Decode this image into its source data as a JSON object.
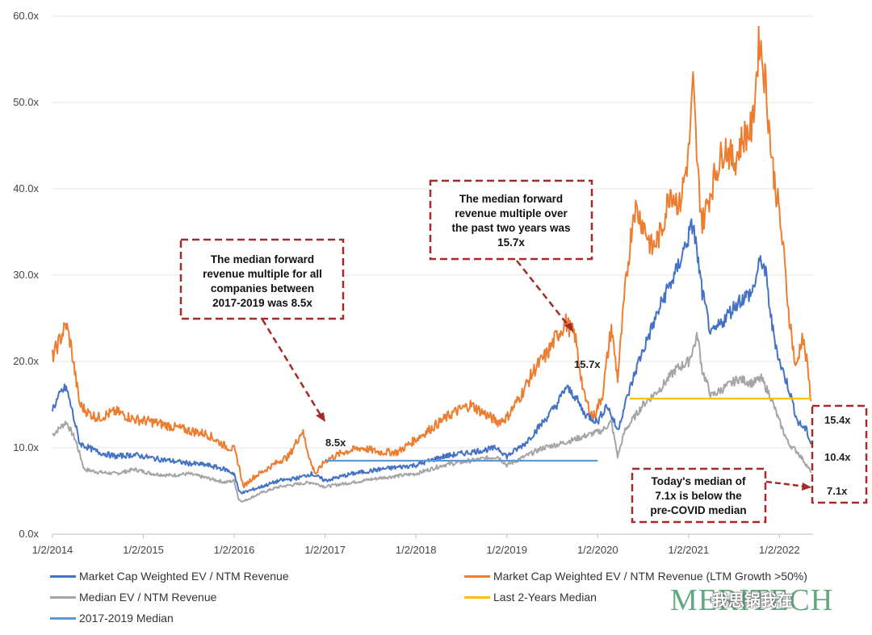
{
  "chart_data": {
    "type": "line",
    "title": "",
    "xlabel": "",
    "ylabel": "",
    "ylim": [
      0,
      60
    ],
    "y_ticks": [
      0,
      10,
      20,
      30,
      40,
      50,
      60
    ],
    "y_tick_labels": [
      "0.0x",
      "10.0x",
      "20.0x",
      "30.0x",
      "40.0x",
      "50.0x",
      "60.0x"
    ],
    "x_range": [
      2014.0,
      2022.37
    ],
    "x_ticks": [
      2014,
      2015,
      2016,
      2017,
      2018,
      2019,
      2020,
      2021,
      2022
    ],
    "x_tick_labels": [
      "1/2/2014",
      "1/2/2015",
      "1/2/2016",
      "1/2/2017",
      "1/2/2018",
      "1/2/2019",
      "1/2/2020",
      "1/2/2021",
      "1/2/2022"
    ],
    "series": [
      {
        "name": "Market Cap Weighted EV / NTM Revenue (LTM Growth >50%)",
        "color": "#ED7D31",
        "x": [
          2014.0,
          2014.1,
          2014.15,
          2014.2,
          2014.3,
          2014.4,
          2014.5,
          2014.7,
          2014.9,
          2015.1,
          2015.3,
          2015.5,
          2015.7,
          2015.9,
          2016.0,
          2016.05,
          2016.1,
          2016.2,
          2016.35,
          2016.5,
          2016.6,
          2016.75,
          2016.85,
          2016.9,
          2017.0,
          2017.2,
          2017.4,
          2017.6,
          2017.8,
          2018.0,
          2018.2,
          2018.4,
          2018.6,
          2018.75,
          2018.9,
          2019.0,
          2019.15,
          2019.3,
          2019.45,
          2019.55,
          2019.65,
          2019.75,
          2019.85,
          2019.95,
          2020.05,
          2020.15,
          2020.22,
          2020.3,
          2020.4,
          2020.5,
          2020.6,
          2020.7,
          2020.8,
          2020.9,
          2021.0,
          2021.05,
          2021.1,
          2021.15,
          2021.2,
          2021.3,
          2021.4,
          2021.5,
          2021.6,
          2021.7,
          2021.78,
          2021.85,
          2021.92,
          2022.0,
          2022.05,
          2022.1,
          2022.18,
          2022.25,
          2022.3,
          2022.35
        ],
        "values": [
          20.5,
          23.0,
          24.3,
          22.0,
          15.0,
          14.0,
          13.5,
          14.2,
          13.3,
          13.0,
          12.5,
          12.0,
          11.6,
          10.2,
          9.8,
          8.0,
          5.5,
          6.5,
          7.5,
          8.5,
          9.0,
          12.0,
          8.0,
          7.0,
          8.5,
          9.5,
          10.0,
          9.5,
          9.5,
          11.0,
          12.5,
          14.0,
          15.0,
          14.0,
          13.0,
          13.5,
          16.0,
          19.0,
          21.0,
          23.0,
          24.5,
          23.0,
          16.0,
          13.5,
          16.0,
          24.0,
          18.0,
          28.0,
          38.0,
          36.0,
          33.0,
          35.0,
          40.0,
          38.0,
          44.0,
          52.0,
          42.0,
          36.0,
          38.0,
          42.0,
          45.0,
          43.0,
          46.0,
          47.0,
          57.5,
          52.0,
          43.0,
          37.0,
          32.0,
          26.0,
          19.0,
          23.0,
          20.0,
          15.4
        ]
      },
      {
        "name": "Market Cap Weighted EV / NTM Revenue",
        "color": "#4472C4",
        "x": [
          2014.0,
          2014.1,
          2014.15,
          2014.2,
          2014.3,
          2014.5,
          2014.7,
          2014.9,
          2015.1,
          2015.3,
          2015.5,
          2015.7,
          2015.9,
          2016.0,
          2016.05,
          2016.1,
          2016.3,
          2016.5,
          2016.7,
          2016.85,
          2017.0,
          2017.3,
          2017.6,
          2018.0,
          2018.3,
          2018.6,
          2018.9,
          2019.0,
          2019.2,
          2019.4,
          2019.55,
          2019.65,
          2019.75,
          2019.85,
          2020.0,
          2020.1,
          2020.22,
          2020.3,
          2020.45,
          2020.6,
          2020.75,
          2020.85,
          2020.95,
          2021.05,
          2021.1,
          2021.15,
          2021.25,
          2021.4,
          2021.55,
          2021.7,
          2021.8,
          2021.85,
          2021.92,
          2022.0,
          2022.1,
          2022.2,
          2022.3,
          2022.35
        ],
        "values": [
          14.5,
          16.5,
          17.0,
          15.0,
          10.5,
          9.5,
          9.0,
          9.2,
          8.8,
          8.5,
          8.2,
          8.0,
          7.5,
          7.0,
          5.0,
          4.8,
          5.5,
          6.2,
          6.5,
          7.0,
          6.2,
          7.0,
          7.5,
          8.0,
          9.0,
          9.5,
          10.0,
          9.0,
          10.5,
          13.0,
          15.0,
          17.0,
          16.0,
          14.0,
          13.0,
          15.0,
          12.0,
          15.0,
          20.0,
          24.0,
          28.0,
          30.0,
          33.0,
          36.0,
          32.0,
          28.0,
          23.0,
          25.0,
          27.0,
          28.0,
          32.0,
          30.0,
          24.0,
          20.0,
          17.0,
          13.0,
          12.0,
          10.4
        ]
      },
      {
        "name": "Median EV / NTM Revenue",
        "color": "#A5A5A5",
        "x": [
          2014.0,
          2014.1,
          2014.15,
          2014.25,
          2014.35,
          2014.5,
          2014.7,
          2014.9,
          2015.1,
          2015.3,
          2015.5,
          2015.7,
          2015.9,
          2016.0,
          2016.05,
          2016.1,
          2016.3,
          2016.5,
          2016.7,
          2016.85,
          2017.0,
          2017.3,
          2017.6,
          2018.0,
          2018.3,
          2018.6,
          2018.9,
          2019.0,
          2019.2,
          2019.4,
          2019.6,
          2019.75,
          2019.9,
          2020.05,
          2020.15,
          2020.22,
          2020.3,
          2020.5,
          2020.7,
          2020.85,
          2021.0,
          2021.1,
          2021.15,
          2021.25,
          2021.4,
          2021.55,
          2021.7,
          2021.8,
          2021.9,
          2022.0,
          2022.1,
          2022.2,
          2022.3,
          2022.35
        ],
        "values": [
          11.5,
          12.5,
          13.0,
          11.0,
          7.5,
          7.2,
          7.0,
          7.5,
          7.0,
          6.8,
          7.0,
          6.5,
          6.0,
          6.2,
          4.0,
          3.8,
          4.8,
          5.5,
          5.8,
          6.0,
          5.5,
          6.0,
          6.5,
          7.0,
          8.0,
          8.5,
          9.0,
          8.0,
          9.0,
          10.0,
          10.5,
          11.0,
          11.5,
          12.0,
          13.0,
          9.0,
          12.0,
          15.0,
          17.0,
          19.0,
          20.0,
          23.0,
          19.0,
          16.0,
          17.0,
          18.0,
          17.5,
          18.0,
          16.0,
          13.0,
          10.5,
          9.5,
          8.0,
          7.1
        ]
      },
      {
        "name": "Last 2-Years Median",
        "color": "#FFC000",
        "x": [
          2020.35,
          2022.35
        ],
        "values": [
          15.7,
          15.7
        ]
      },
      {
        "name": "2017-2019 Median",
        "color": "#5B9BD5",
        "x": [
          2017.0,
          2020.0
        ],
        "values": [
          8.5,
          8.5
        ]
      }
    ],
    "annotations": [
      {
        "lines": [
          "The median forward",
          "revenue multiple for all",
          "companies between",
          "2017-2019 was 8.5x"
        ]
      },
      {
        "lines": [
          "The median forward",
          "revenue multiple over",
          "the past two years was",
          "15.7x"
        ]
      },
      {
        "lines": [
          "Today's median of",
          "7.1x is below the",
          "pre-COVID median"
        ]
      }
    ],
    "value_labels": {
      "pre_covid": "8.5x",
      "two_year": "15.7x",
      "end_orange": "15.4x",
      "end_blue": "10.4x",
      "end_gray": "7.1x"
    },
    "legend": [
      {
        "label": "Market Cap Weighted EV / NTM Revenue",
        "color": "#4472C4"
      },
      {
        "label": "Market Cap Weighted EV / NTM Revenue (LTM Growth >50%)",
        "color": "#ED7D31"
      },
      {
        "label": "Median EV / NTM Revenue",
        "color": "#A5A5A5"
      },
      {
        "label": "Last 2-Years Median",
        "color": "#FFC000"
      },
      {
        "label": "2017-2019 Median",
        "color": "#5B9BD5"
      }
    ]
  },
  "watermark": {
    "logo": "MERITECH",
    "text": "我思锅我在"
  }
}
